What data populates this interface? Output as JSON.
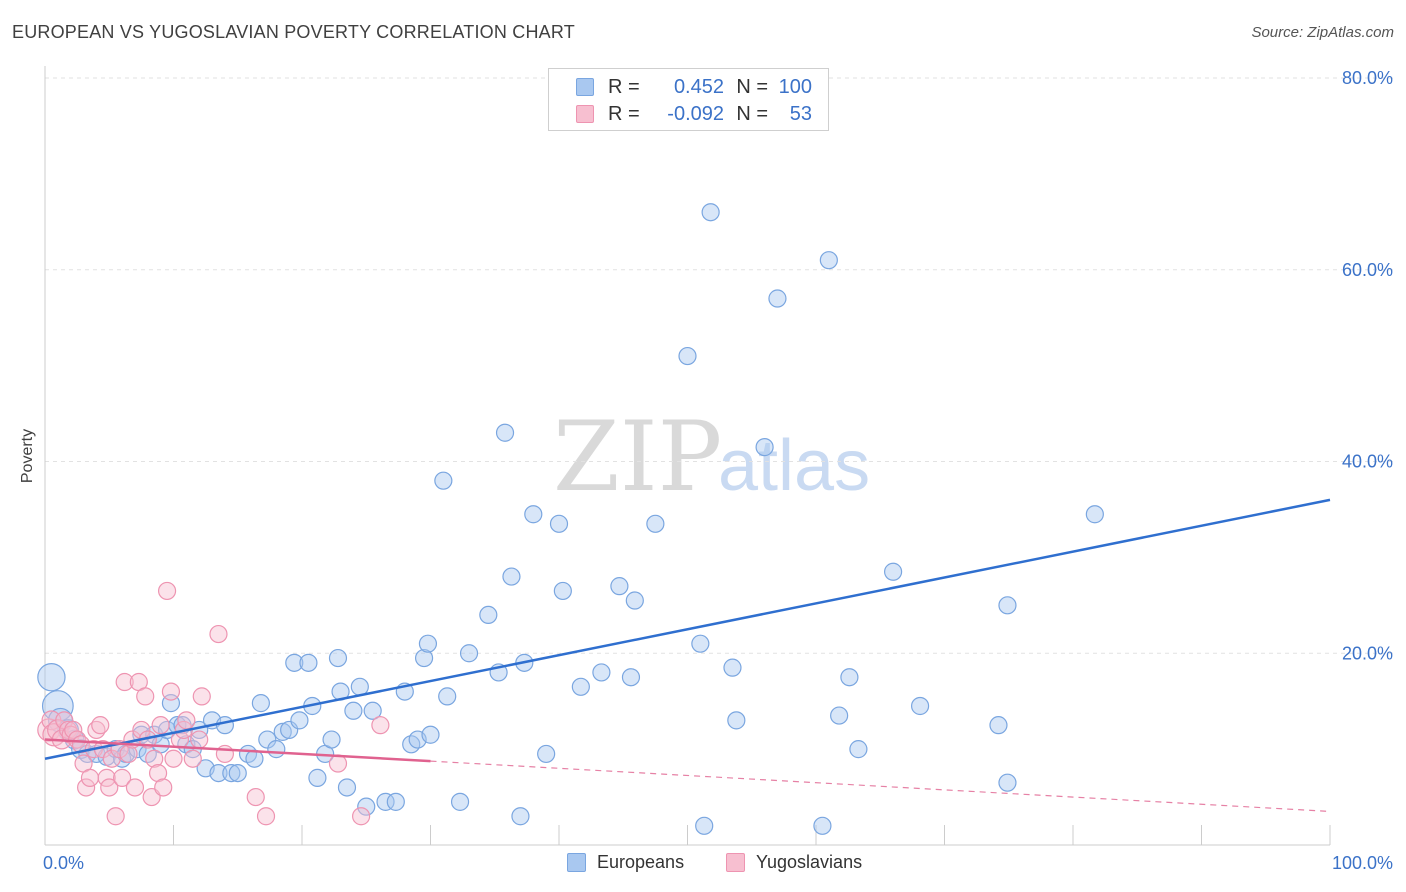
{
  "title": "EUROPEAN VS YUGOSLAVIAN POVERTY CORRELATION CHART",
  "source": "Source: ZipAtlas.com",
  "watermark": {
    "part1": "ZIP",
    "part2": "atlas"
  },
  "legend": {
    "rows": [
      {
        "r_label": "R =",
        "r_value": "0.452",
        "n_label": "N =",
        "n_value": "100",
        "color": "#a9c8f0",
        "border": "#7aa6e0"
      },
      {
        "r_label": "R =",
        "r_value": "-0.092",
        "n_label": "N =",
        "n_value": "53",
        "color": "#f7bfd0",
        "border": "#ee94b1"
      }
    ]
  },
  "bottom_legend": [
    {
      "label": "Europeans",
      "color": "#a9c8f0",
      "border": "#7aa6e0"
    },
    {
      "label": "Yugoslavians",
      "color": "#f7bfd0",
      "border": "#ee94b1"
    }
  ],
  "chart_data": {
    "type": "scatter",
    "title": "EUROPEAN VS YUGOSLAVIAN POVERTY CORRELATION CHART",
    "xlabel": "",
    "ylabel": "Poverty",
    "xlim": [
      0,
      100
    ],
    "ylim": [
      0,
      80
    ],
    "x_tick_labels": [
      {
        "value": 0,
        "label": "0.0%"
      },
      {
        "value": 100,
        "label": "100.0%"
      }
    ],
    "y_tick_labels": [
      {
        "value": 20,
        "label": "20.0%"
      },
      {
        "value": 40,
        "label": "40.0%"
      },
      {
        "value": 60,
        "label": "60.0%"
      },
      {
        "value": 80,
        "label": "80.0%"
      }
    ],
    "series": [
      {
        "name": "Europeans",
        "color": "#a9c8f0",
        "stroke": "#7aa6e0",
        "line_color": "#2f6fcf",
        "trend": {
          "x0": 0,
          "y0": 9.0,
          "x1": 100,
          "y1": 36.0,
          "solid_to": 100
        },
        "points": [
          {
            "x": 0.5,
            "y": 17.5,
            "s": 1.6
          },
          {
            "x": 1,
            "y": 14.5,
            "s": 1.8
          },
          {
            "x": 1.2,
            "y": 13,
            "s": 1.4
          },
          {
            "x": 1.8,
            "y": 12,
            "s": 1.2
          },
          {
            "x": 2.3,
            "y": 11,
            "s": 1.1
          },
          {
            "x": 2.8,
            "y": 10,
            "s": 1.1
          },
          {
            "x": 3.3,
            "y": 9.5,
            "s": 1
          },
          {
            "x": 4,
            "y": 9.5,
            "s": 1
          },
          {
            "x": 4.8,
            "y": 9.2,
            "s": 1
          },
          {
            "x": 5.5,
            "y": 10,
            "s": 1
          },
          {
            "x": 6,
            "y": 9,
            "s": 1
          },
          {
            "x": 6.3,
            "y": 9.5,
            "s": 1
          },
          {
            "x": 7.2,
            "y": 10,
            "s": 1
          },
          {
            "x": 7.5,
            "y": 11.5,
            "s": 1
          },
          {
            "x": 8,
            "y": 9.5,
            "s": 1
          },
          {
            "x": 8.5,
            "y": 11.5,
            "s": 1
          },
          {
            "x": 9,
            "y": 10.5,
            "s": 1
          },
          {
            "x": 9.5,
            "y": 12,
            "s": 1
          },
          {
            "x": 9.8,
            "y": 14.8,
            "s": 1
          },
          {
            "x": 10.3,
            "y": 12.5,
            "s": 1
          },
          {
            "x": 10.7,
            "y": 12.5,
            "s": 1
          },
          {
            "x": 11,
            "y": 10.5,
            "s": 1
          },
          {
            "x": 11.5,
            "y": 10,
            "s": 1
          },
          {
            "x": 12,
            "y": 12,
            "s": 1
          },
          {
            "x": 12.5,
            "y": 8,
            "s": 1
          },
          {
            "x": 13,
            "y": 13,
            "s": 1
          },
          {
            "x": 13.5,
            "y": 7.5,
            "s": 1
          },
          {
            "x": 14,
            "y": 12.5,
            "s": 1
          },
          {
            "x": 14.5,
            "y": 7.5,
            "s": 1
          },
          {
            "x": 15,
            "y": 7.5,
            "s": 1
          },
          {
            "x": 15.8,
            "y": 9.5,
            "s": 1
          },
          {
            "x": 16.3,
            "y": 9,
            "s": 1
          },
          {
            "x": 16.8,
            "y": 14.8,
            "s": 1
          },
          {
            "x": 17.3,
            "y": 11,
            "s": 1
          },
          {
            "x": 18,
            "y": 10,
            "s": 1
          },
          {
            "x": 18.5,
            "y": 11.8,
            "s": 1
          },
          {
            "x": 19,
            "y": 12,
            "s": 1
          },
          {
            "x": 19.4,
            "y": 19,
            "s": 1
          },
          {
            "x": 19.8,
            "y": 13,
            "s": 1
          },
          {
            "x": 20.5,
            "y": 19,
            "s": 1
          },
          {
            "x": 20.8,
            "y": 14.5,
            "s": 1
          },
          {
            "x": 21.2,
            "y": 7,
            "s": 1
          },
          {
            "x": 21.8,
            "y": 9.5,
            "s": 1
          },
          {
            "x": 22.3,
            "y": 11,
            "s": 1
          },
          {
            "x": 22.8,
            "y": 19.5,
            "s": 1
          },
          {
            "x": 23,
            "y": 16,
            "s": 1
          },
          {
            "x": 23.5,
            "y": 6,
            "s": 1
          },
          {
            "x": 24,
            "y": 14,
            "s": 1
          },
          {
            "x": 24.5,
            "y": 16.5,
            "s": 1
          },
          {
            "x": 25,
            "y": 4,
            "s": 1
          },
          {
            "x": 25.5,
            "y": 14,
            "s": 1
          },
          {
            "x": 26.5,
            "y": 4.5,
            "s": 1
          },
          {
            "x": 27.3,
            "y": 4.5,
            "s": 1
          },
          {
            "x": 28,
            "y": 16,
            "s": 1
          },
          {
            "x": 28.5,
            "y": 10.5,
            "s": 1
          },
          {
            "x": 29,
            "y": 11,
            "s": 1
          },
          {
            "x": 29.5,
            "y": 19.5,
            "s": 1
          },
          {
            "x": 29.8,
            "y": 21,
            "s": 1
          },
          {
            "x": 30,
            "y": 11.5,
            "s": 1
          },
          {
            "x": 31,
            "y": 38,
            "s": 1
          },
          {
            "x": 31.3,
            "y": 15.5,
            "s": 1
          },
          {
            "x": 32.3,
            "y": 4.5,
            "s": 1
          },
          {
            "x": 33,
            "y": 20,
            "s": 1
          },
          {
            "x": 34.5,
            "y": 24,
            "s": 1
          },
          {
            "x": 35.3,
            "y": 18,
            "s": 1
          },
          {
            "x": 35.8,
            "y": 43,
            "s": 1
          },
          {
            "x": 36.3,
            "y": 28,
            "s": 1
          },
          {
            "x": 37,
            "y": 3,
            "s": 1
          },
          {
            "x": 37.3,
            "y": 19,
            "s": 1
          },
          {
            "x": 38,
            "y": 34.5,
            "s": 1
          },
          {
            "x": 39,
            "y": 9.5,
            "s": 1
          },
          {
            "x": 40,
            "y": 33.5,
            "s": 1
          },
          {
            "x": 40.3,
            "y": 26.5,
            "s": 1
          },
          {
            "x": 41.7,
            "y": 16.5,
            "s": 1
          },
          {
            "x": 43.3,
            "y": 18,
            "s": 1
          },
          {
            "x": 44.7,
            "y": 27,
            "s": 1
          },
          {
            "x": 45.6,
            "y": 17.5,
            "s": 1
          },
          {
            "x": 45.9,
            "y": 25.5,
            "s": 1
          },
          {
            "x": 47.5,
            "y": 33.5,
            "s": 1
          },
          {
            "x": 50,
            "y": 51,
            "s": 1
          },
          {
            "x": 51,
            "y": 21,
            "s": 1
          },
          {
            "x": 51.3,
            "y": 2,
            "s": 1
          },
          {
            "x": 51.8,
            "y": 66,
            "s": 1
          },
          {
            "x": 53.5,
            "y": 18.5,
            "s": 1
          },
          {
            "x": 53.8,
            "y": 13,
            "s": 1
          },
          {
            "x": 56,
            "y": 41.5,
            "s": 1
          },
          {
            "x": 57,
            "y": 57,
            "s": 1
          },
          {
            "x": 60.5,
            "y": 2,
            "s": 1
          },
          {
            "x": 61,
            "y": 61,
            "s": 1
          },
          {
            "x": 61.8,
            "y": 13.5,
            "s": 1
          },
          {
            "x": 62.6,
            "y": 17.5,
            "s": 1
          },
          {
            "x": 63.3,
            "y": 10,
            "s": 1
          },
          {
            "x": 66,
            "y": 28.5,
            "s": 1
          },
          {
            "x": 68.1,
            "y": 14.5,
            "s": 1
          },
          {
            "x": 74.2,
            "y": 12.5,
            "s": 1
          },
          {
            "x": 74.9,
            "y": 6.5,
            "s": 1
          },
          {
            "x": 74.9,
            "y": 25,
            "s": 1
          },
          {
            "x": 81.7,
            "y": 34.5,
            "s": 1
          }
        ]
      },
      {
        "name": "Yugoslavians",
        "color": "#f7bfd0",
        "stroke": "#ee94b1",
        "line_color": "#e0628f",
        "trend": {
          "x0": 0,
          "y0": 11.0,
          "x1": 100,
          "y1": 3.5,
          "solid_to": 30
        },
        "points": [
          {
            "x": 0.3,
            "y": 12,
            "s": 1.3
          },
          {
            "x": 0.5,
            "y": 13,
            "s": 1.1
          },
          {
            "x": 0.7,
            "y": 11.5,
            "s": 1.3
          },
          {
            "x": 1,
            "y": 12,
            "s": 1.2
          },
          {
            "x": 1.3,
            "y": 11,
            "s": 1.1
          },
          {
            "x": 1.5,
            "y": 13,
            "s": 1
          },
          {
            "x": 1.8,
            "y": 12,
            "s": 1
          },
          {
            "x": 2,
            "y": 11.5,
            "s": 1
          },
          {
            "x": 2.2,
            "y": 12,
            "s": 1
          },
          {
            "x": 2.5,
            "y": 11,
            "s": 1
          },
          {
            "x": 2.8,
            "y": 10.5,
            "s": 1
          },
          {
            "x": 3,
            "y": 8.5,
            "s": 1
          },
          {
            "x": 3.2,
            "y": 6,
            "s": 1
          },
          {
            "x": 3.5,
            "y": 7,
            "s": 1
          },
          {
            "x": 3.8,
            "y": 10,
            "s": 1
          },
          {
            "x": 4,
            "y": 12,
            "s": 1
          },
          {
            "x": 4.3,
            "y": 12.5,
            "s": 1
          },
          {
            "x": 4.5,
            "y": 10,
            "s": 1
          },
          {
            "x": 4.8,
            "y": 7,
            "s": 1
          },
          {
            "x": 5,
            "y": 6,
            "s": 1
          },
          {
            "x": 5.2,
            "y": 9,
            "s": 1
          },
          {
            "x": 5.5,
            "y": 3,
            "s": 1
          },
          {
            "x": 5.8,
            "y": 10,
            "s": 1
          },
          {
            "x": 6,
            "y": 7,
            "s": 1
          },
          {
            "x": 6.2,
            "y": 17,
            "s": 1
          },
          {
            "x": 6.5,
            "y": 9.5,
            "s": 1
          },
          {
            "x": 6.8,
            "y": 11,
            "s": 1
          },
          {
            "x": 7,
            "y": 6,
            "s": 1
          },
          {
            "x": 7.3,
            "y": 17,
            "s": 1
          },
          {
            "x": 7.5,
            "y": 12,
            "s": 1
          },
          {
            "x": 7.8,
            "y": 15.5,
            "s": 1
          },
          {
            "x": 8,
            "y": 11,
            "s": 1
          },
          {
            "x": 8.3,
            "y": 5,
            "s": 1
          },
          {
            "x": 8.5,
            "y": 9,
            "s": 1
          },
          {
            "x": 8.8,
            "y": 7.5,
            "s": 1
          },
          {
            "x": 9,
            "y": 12.5,
            "s": 1
          },
          {
            "x": 9.2,
            "y": 6,
            "s": 1
          },
          {
            "x": 9.5,
            "y": 26.5,
            "s": 1
          },
          {
            "x": 9.8,
            "y": 16,
            "s": 1
          },
          {
            "x": 10,
            "y": 9,
            "s": 1
          },
          {
            "x": 10.5,
            "y": 11,
            "s": 1
          },
          {
            "x": 10.8,
            "y": 12,
            "s": 1
          },
          {
            "x": 11,
            "y": 13,
            "s": 1
          },
          {
            "x": 11.5,
            "y": 9,
            "s": 1
          },
          {
            "x": 12,
            "y": 11,
            "s": 1
          },
          {
            "x": 12.2,
            "y": 15.5,
            "s": 1
          },
          {
            "x": 13.5,
            "y": 22,
            "s": 1
          },
          {
            "x": 14,
            "y": 9.5,
            "s": 1
          },
          {
            "x": 16.4,
            "y": 5,
            "s": 1
          },
          {
            "x": 17.2,
            "y": 3,
            "s": 1
          },
          {
            "x": 22.8,
            "y": 8.5,
            "s": 1
          },
          {
            "x": 24.6,
            "y": 3,
            "s": 1
          },
          {
            "x": 26.1,
            "y": 12.5,
            "s": 1
          }
        ]
      }
    ]
  }
}
